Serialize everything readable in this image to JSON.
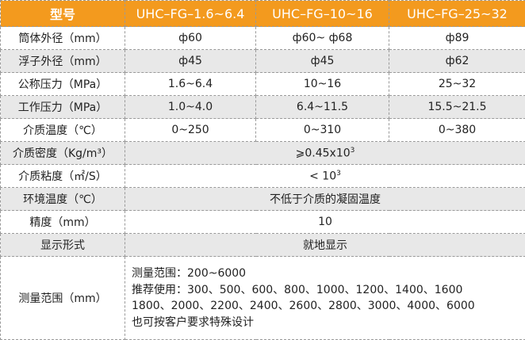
{
  "table": {
    "header": [
      "型号",
      "UHC–FG–1.6~6.4",
      "UHC–FG–10~16",
      "UHC–FG–25~32"
    ],
    "rows": [
      {
        "label": "筒体外径（mm）",
        "cells": [
          "ф60",
          "ф60~ ф68",
          "ф89"
        ]
      },
      {
        "label": "浮子外径（mm）",
        "cells": [
          "ф45",
          "ф45",
          "ф62"
        ]
      },
      {
        "label": "公称压力（MPa）",
        "cells": [
          "1.6~6.4",
          "10~16",
          "25~32"
        ]
      },
      {
        "label": "工作压力（MPa）",
        "cells": [
          "1.0~4.0",
          "6.4~11.5",
          "15.5~21.5"
        ]
      },
      {
        "label": "介质温度（℃）",
        "cells": [
          "0~250",
          "0~310",
          "0~380"
        ]
      },
      {
        "label": "介质密度（Kg/m³）",
        "value": "⩾0.45x10",
        "sup": "3"
      },
      {
        "label": "介质粘度（㎡/S）",
        "value": "< 10",
        "sup": "3"
      },
      {
        "label": "环境温度（℃）",
        "value": "不低于介质的凝固温度"
      },
      {
        "label": "精度（mm）",
        "value": "10"
      },
      {
        "label": "显示形式",
        "value": "就地显示"
      },
      {
        "label": "测量范围（mm）",
        "lines": [
          "测量范围：200~6000",
          "推荐使用：300、500、600、800、1000、1200、1400、1600",
          "1800、2000、2200、2400、2600、2800、3000、4000、6000",
          "也可按客户要求特殊设计"
        ]
      }
    ]
  }
}
